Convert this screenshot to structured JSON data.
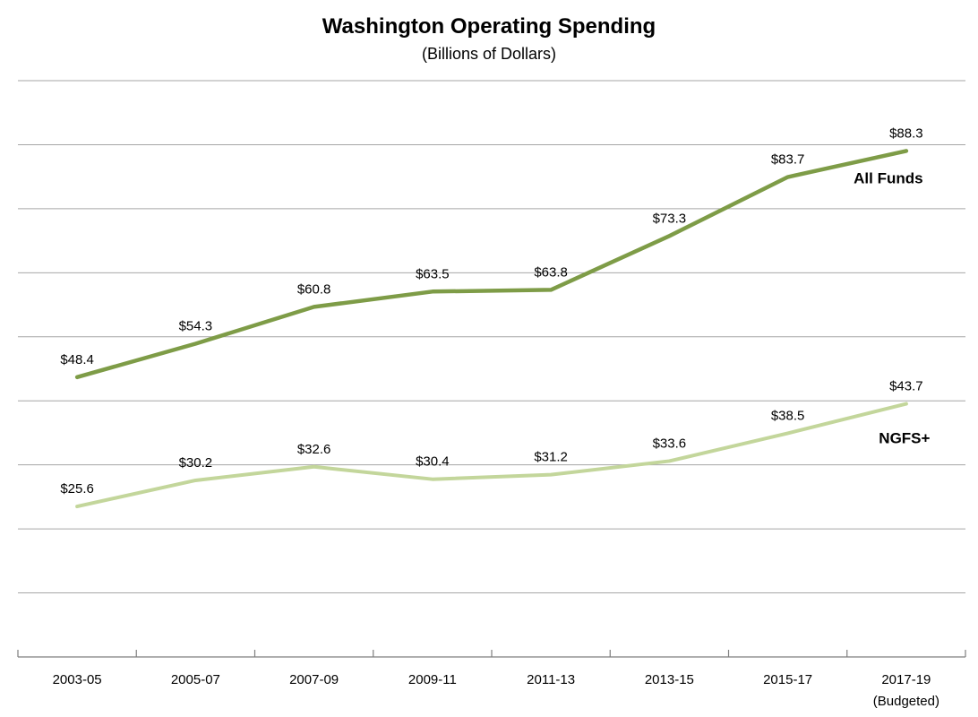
{
  "title": "Washington Operating Spending",
  "subtitle": "(Billions of Dollars)",
  "chart_data": {
    "type": "line",
    "title": "Washington Operating Spending",
    "subtitle": "(Billions of Dollars)",
    "categories": [
      {
        "label": "2003-05"
      },
      {
        "label": "2005-07"
      },
      {
        "label": "2007-09"
      },
      {
        "label": "2009-11"
      },
      {
        "label": "2011-13"
      },
      {
        "label": "2013-15"
      },
      {
        "label": "2015-17"
      },
      {
        "label": "2017-19",
        "sublabel": "(Budgeted)"
      }
    ],
    "series": [
      {
        "name": "All Funds",
        "values": [
          48.4,
          54.3,
          60.8,
          63.5,
          63.8,
          73.3,
          83.7,
          88.3
        ],
        "labels": [
          "$48.4",
          "$54.3",
          "$60.8",
          "$63.5",
          "$63.8",
          "$73.3",
          "$83.7",
          "$88.3"
        ],
        "color": "#7E9C47"
      },
      {
        "name": "NGFS+",
        "values": [
          25.6,
          30.2,
          32.6,
          30.4,
          31.2,
          33.6,
          38.5,
          43.7
        ],
        "labels": [
          "$25.6",
          "$30.2",
          "$32.6",
          "$30.4",
          "$31.2",
          "$33.6",
          "$38.5",
          "$43.7"
        ],
        "color": "#C3D69B"
      }
    ],
    "ylabel": "",
    "xlabel": "",
    "ylim": [
      0,
      100
    ],
    "grid": true,
    "gridline_count": 10,
    "gridline_color": "#A6A6A6",
    "axis_color": "#7F7F7F",
    "label_color": "#000000",
    "legend_position": "end-of-line",
    "y_axis_labels_shown": false
  }
}
